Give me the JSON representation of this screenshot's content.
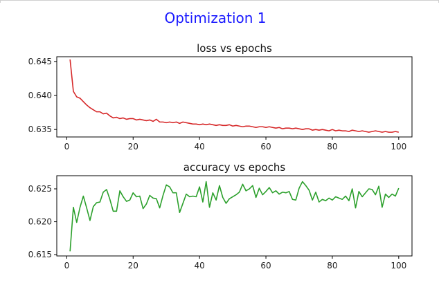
{
  "figure": {
    "suptitle": "Optimization 1",
    "colors": {
      "loss": "#d62728",
      "accuracy": "#2ca02c",
      "suptitle": "#1a1aff"
    }
  },
  "chart_data": [
    {
      "type": "line",
      "title": "loss vs epochs",
      "xlabel": "",
      "ylabel": "",
      "xlim": [
        -3,
        104
      ],
      "ylim": [
        0.6339,
        0.6457
      ],
      "xticks": [
        0,
        20,
        40,
        60,
        80,
        100
      ],
      "xtick_labels": [
        "0",
        "20",
        "40",
        "60",
        "80",
        "100"
      ],
      "yticks": [
        0.635,
        0.64,
        0.645
      ],
      "ytick_labels": [
        "0.635",
        "0.640",
        "0.645"
      ],
      "grid": false,
      "series": [
        {
          "color": "#d62728",
          "x": [
            1,
            2,
            3,
            4,
            5,
            6,
            7,
            8,
            9,
            10,
            11,
            12,
            13,
            14,
            15,
            16,
            17,
            18,
            19,
            20,
            21,
            22,
            23,
            24,
            25,
            26,
            27,
            28,
            29,
            30,
            31,
            32,
            33,
            34,
            35,
            36,
            37,
            38,
            39,
            40,
            41,
            42,
            43,
            44,
            45,
            46,
            47,
            48,
            49,
            50,
            51,
            52,
            53,
            54,
            55,
            56,
            57,
            58,
            59,
            60,
            61,
            62,
            63,
            64,
            65,
            66,
            67,
            68,
            69,
            70,
            71,
            72,
            73,
            74,
            75,
            76,
            77,
            78,
            79,
            80,
            81,
            82,
            83,
            84,
            85,
            86,
            87,
            88,
            89,
            90,
            91,
            92,
            93,
            94,
            95,
            96,
            97,
            98,
            99,
            100
          ],
          "y": [
            0.6453,
            0.6406,
            0.6398,
            0.6396,
            0.6391,
            0.6386,
            0.6382,
            0.6379,
            0.6376,
            0.6376,
            0.6373,
            0.6374,
            0.637,
            0.6367,
            0.6368,
            0.6366,
            0.6367,
            0.6365,
            0.6366,
            0.6366,
            0.6364,
            0.6365,
            0.6364,
            0.6363,
            0.6364,
            0.6362,
            0.6365,
            0.6361,
            0.6361,
            0.636,
            0.6361,
            0.636,
            0.6361,
            0.6359,
            0.6361,
            0.636,
            0.6359,
            0.6358,
            0.6358,
            0.6357,
            0.6358,
            0.6357,
            0.6358,
            0.6357,
            0.6356,
            0.6357,
            0.6356,
            0.6356,
            0.6357,
            0.6355,
            0.6356,
            0.6355,
            0.6354,
            0.6355,
            0.6355,
            0.6354,
            0.6353,
            0.6354,
            0.6354,
            0.6353,
            0.6354,
            0.6353,
            0.6352,
            0.6353,
            0.6351,
            0.6352,
            0.6352,
            0.6351,
            0.6352,
            0.6351,
            0.635,
            0.6351,
            0.6351,
            0.6349,
            0.635,
            0.6349,
            0.635,
            0.6349,
            0.6348,
            0.635,
            0.6348,
            0.6349,
            0.6348,
            0.6348,
            0.6347,
            0.6349,
            0.6348,
            0.6347,
            0.6348,
            0.6347,
            0.6346,
            0.6347,
            0.6348,
            0.6347,
            0.6346,
            0.6347,
            0.6346,
            0.6346,
            0.6347,
            0.6346
          ]
        }
      ]
    },
    {
      "type": "line",
      "title": "accuracy vs epochs",
      "xlabel": "",
      "ylabel": "",
      "xlim": [
        -3,
        104
      ],
      "ylim": [
        0.6148,
        0.627
      ],
      "xticks": [
        0,
        20,
        40,
        60,
        80,
        100
      ],
      "xtick_labels": [
        "0",
        "20",
        "40",
        "60",
        "80",
        "100"
      ],
      "yticks": [
        0.615,
        0.62,
        0.625
      ],
      "ytick_labels": [
        "0.615",
        "0.620",
        "0.625"
      ],
      "grid": false,
      "series": [
        {
          "color": "#2ca02c",
          "x": [
            1,
            2,
            3,
            4,
            5,
            6,
            7,
            8,
            9,
            10,
            11,
            12,
            13,
            14,
            15,
            16,
            17,
            18,
            19,
            20,
            21,
            22,
            23,
            24,
            25,
            26,
            27,
            28,
            29,
            30,
            31,
            32,
            33,
            34,
            35,
            36,
            37,
            38,
            39,
            40,
            41,
            42,
            43,
            44,
            45,
            46,
            47,
            48,
            49,
            50,
            51,
            52,
            53,
            54,
            55,
            56,
            57,
            58,
            59,
            60,
            61,
            62,
            63,
            64,
            65,
            66,
            67,
            68,
            69,
            70,
            71,
            72,
            73,
            74,
            75,
            76,
            77,
            78,
            79,
            80,
            81,
            82,
            83,
            84,
            85,
            86,
            87,
            88,
            89,
            90,
            91,
            92,
            93,
            94,
            95,
            96,
            97,
            98,
            99,
            100
          ],
          "y": [
            0.6155,
            0.6222,
            0.6199,
            0.6222,
            0.6239,
            0.6221,
            0.6202,
            0.6223,
            0.6229,
            0.623,
            0.6245,
            0.6249,
            0.6234,
            0.6216,
            0.6216,
            0.6247,
            0.6238,
            0.6231,
            0.6233,
            0.6244,
            0.6238,
            0.6239,
            0.622,
            0.6227,
            0.624,
            0.6236,
            0.6235,
            0.6221,
            0.624,
            0.6256,
            0.6253,
            0.6244,
            0.6244,
            0.6214,
            0.6228,
            0.6242,
            0.6238,
            0.6239,
            0.6238,
            0.6253,
            0.623,
            0.6261,
            0.6222,
            0.6244,
            0.6233,
            0.6255,
            0.6237,
            0.6228,
            0.6235,
            0.6238,
            0.6241,
            0.6245,
            0.6257,
            0.6247,
            0.625,
            0.6255,
            0.6237,
            0.6251,
            0.6241,
            0.6246,
            0.6252,
            0.6244,
            0.6247,
            0.6242,
            0.6245,
            0.6244,
            0.6246,
            0.6234,
            0.6233,
            0.6251,
            0.6261,
            0.6255,
            0.6248,
            0.6233,
            0.6245,
            0.623,
            0.6234,
            0.6232,
            0.6236,
            0.6233,
            0.6238,
            0.6236,
            0.6234,
            0.6239,
            0.6232,
            0.625,
            0.6221,
            0.6246,
            0.6238,
            0.6244,
            0.625,
            0.6249,
            0.6241,
            0.6254,
            0.6222,
            0.6242,
            0.6237,
            0.6242,
            0.6239,
            0.6251
          ]
        }
      ]
    }
  ]
}
